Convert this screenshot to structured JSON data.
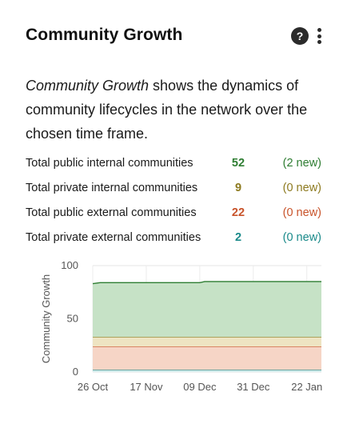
{
  "widget": {
    "title": "Community Growth",
    "help_icon": "question-circle-icon",
    "help_glyph": "?",
    "more_icon": "vertical-ellipsis-icon",
    "description_italic": "Community Growth",
    "description_rest": " shows the dynamics of community lifecycles in the network over the chosen time frame."
  },
  "stats": [
    {
      "label": "Total public internal communities",
      "value": "52",
      "new": "(2 new)",
      "color": "#2e7d32"
    },
    {
      "label": "Total private internal communities",
      "value": "9",
      "new": "(0 new)",
      "color": "#8d7a1f"
    },
    {
      "label": "Total public external communities",
      "value": "22",
      "new": "(0 new)",
      "color": "#c8532a"
    },
    {
      "label": "Total private external communities",
      "value": "2",
      "new": "(0 new)",
      "color": "#1a8a8a"
    }
  ],
  "chart_data": {
    "type": "area",
    "stacked": true,
    "ylabel": "Community Growth",
    "xlabel": "",
    "ylim": [
      0,
      100
    ],
    "yticks": [
      0,
      50,
      100
    ],
    "x": [
      "26 Oct",
      "29 Oct",
      "17 Nov",
      "09 Dec",
      "11 Dec",
      "31 Dec",
      "22 Jan",
      "28 Jan"
    ],
    "xticks": [
      "26 Oct",
      "17 Nov",
      "09 Dec",
      "31 Dec",
      "22 Jan"
    ],
    "grid": true,
    "series": [
      {
        "key": "private_external",
        "values": [
          2,
          2,
          2,
          2,
          2,
          2,
          2,
          2
        ],
        "color": "#1a8a8a",
        "fill": "#d3ecec"
      },
      {
        "key": "public_external",
        "values": [
          22,
          22,
          22,
          22,
          22,
          22,
          22,
          22
        ],
        "color": "#c8532a",
        "fill": "#f6d5c6"
      },
      {
        "key": "private_internal",
        "values": [
          9,
          9,
          9,
          9,
          9,
          9,
          9,
          9
        ],
        "color": "#8d7a1f",
        "fill": "#eee4c2"
      },
      {
        "key": "public_internal",
        "values": [
          50,
          51,
          51,
          51,
          52,
          52,
          52,
          52
        ],
        "color": "#2e7d32",
        "fill": "#c6e2c6"
      }
    ]
  }
}
